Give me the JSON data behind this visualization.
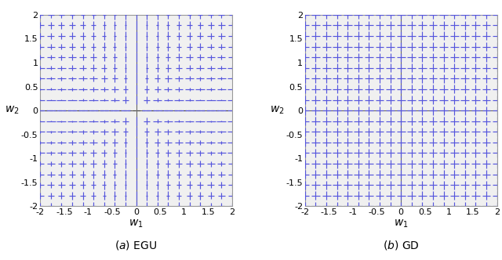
{
  "xlim": [
    -2,
    2
  ],
  "ylim": [
    -2,
    2
  ],
  "xlabel": "$w_1$",
  "ylabel": "$w_2$",
  "title_a": "$(a)$ EGU",
  "title_b": "$(b)$ GD",
  "grid_color": "#666666",
  "marker_color": "#5555dd",
  "n_points": 19,
  "figsize": [
    6.4,
    3.32
  ],
  "dpi": 100,
  "bg_color": "#f0f0f0",
  "spine_color": "#999999",
  "tick_labels": [
    "-2",
    "-1.5",
    "-1",
    "-0.5",
    "0",
    "0.5",
    "1",
    "1.5",
    "2"
  ],
  "tick_vals": [
    -2,
    -1.5,
    -1,
    -0.5,
    0,
    0.5,
    1,
    1.5,
    2
  ]
}
